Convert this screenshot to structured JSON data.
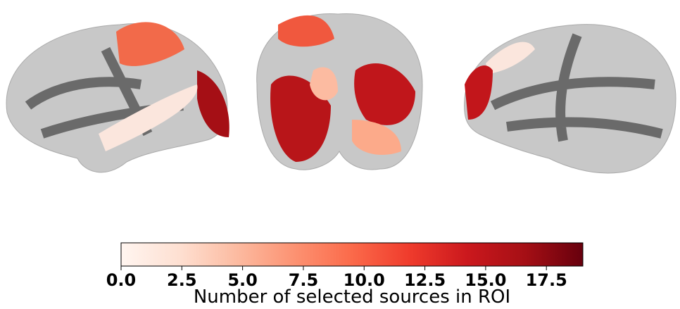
{
  "chart_data": {
    "type": "colorbar",
    "label": "Number of selected sources in ROI",
    "xlim": [
      0,
      19
    ],
    "xticks": [
      {
        "value": 0,
        "label": "0.0"
      },
      {
        "value": 2.5,
        "label": "2.5"
      },
      {
        "value": 5,
        "label": "5.0"
      },
      {
        "value": 7.5,
        "label": "7.5"
      },
      {
        "value": 10,
        "label": "10.0"
      },
      {
        "value": 12.5,
        "label": "12.5"
      },
      {
        "value": 15,
        "label": "15.0"
      },
      {
        "value": 17.5,
        "label": "17.5"
      }
    ],
    "colors": [
      "#fff5f0",
      "#fee0d2",
      "#fcbba1",
      "#fc9272",
      "#fb6a4a",
      "#ef3b2c",
      "#cb181d",
      "#a50f15",
      "#67000d"
    ]
  }
}
